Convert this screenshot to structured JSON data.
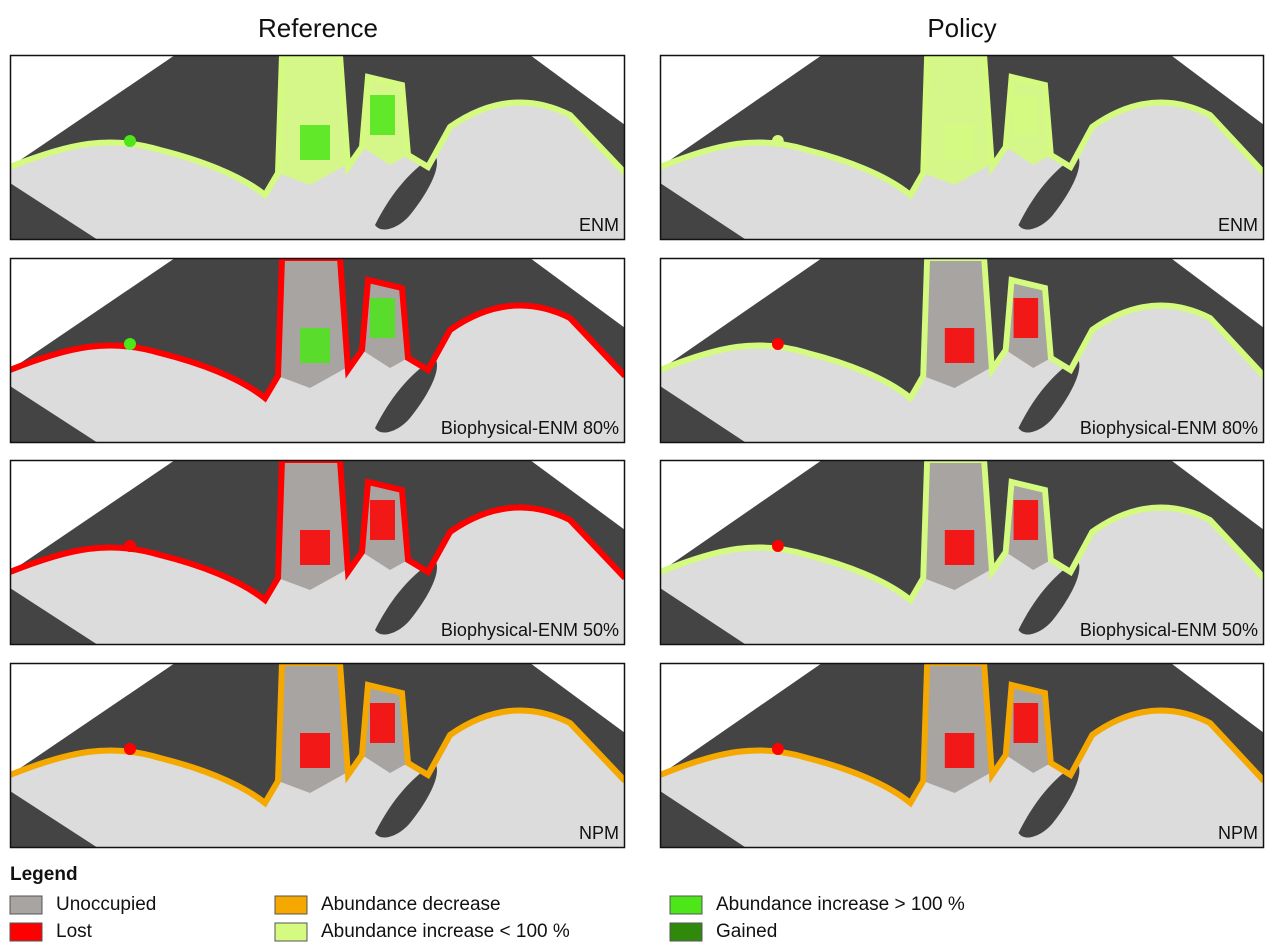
{
  "columns": [
    "Reference",
    "Policy"
  ],
  "panels": [
    [
      "ENM",
      "ENM"
    ],
    [
      "Biophysical-ENM 80%",
      "Biophysical-ENM 80%"
    ],
    [
      "Biophysical-ENM 50%",
      "Biophysical-ENM 50%"
    ],
    [
      "NPM",
      "NPM"
    ]
  ],
  "legend": {
    "title": "Legend",
    "items": [
      {
        "label": "Unoccupied",
        "color": "#a8a4a2"
      },
      {
        "label": "Lost",
        "color": "#ff0000"
      },
      {
        "label": "Abundance decrease",
        "color": "#f5a800"
      },
      {
        "label": "Abundance increase < 100 %",
        "color": "#d4fa80"
      },
      {
        "label": "Abundance increase > 100 %",
        "color": "#4ce619"
      },
      {
        "label": "Gained",
        "color": "#2f8a0b"
      }
    ]
  }
}
